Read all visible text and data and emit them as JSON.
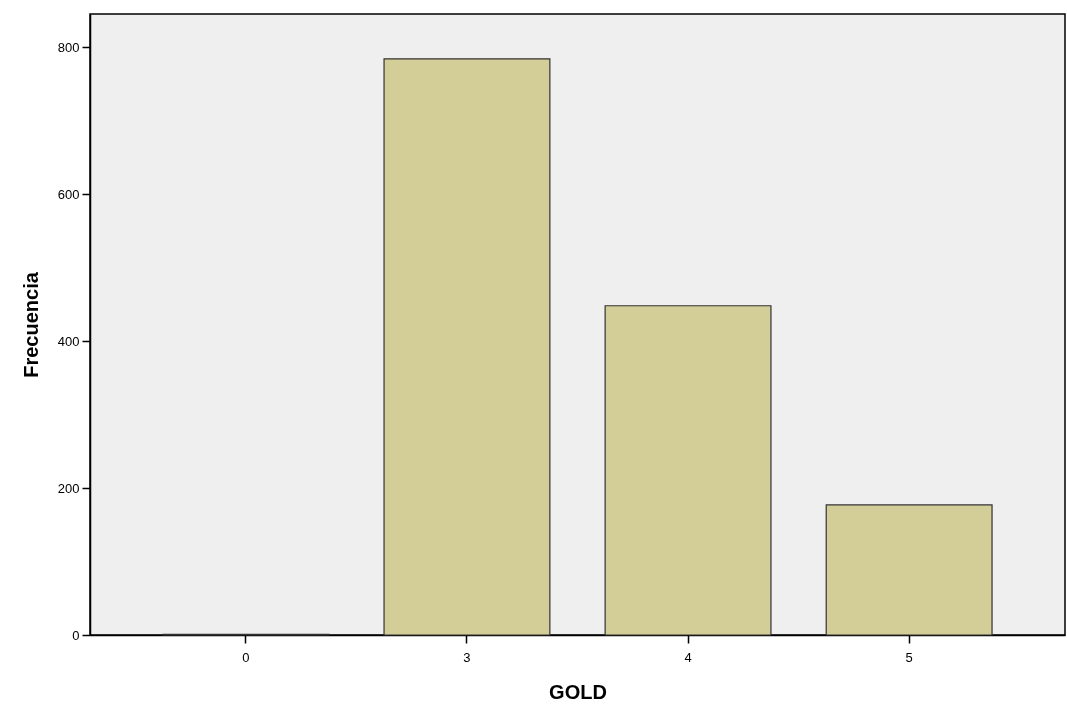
{
  "chart_data": {
    "type": "bar",
    "xlabel": "GOLD",
    "ylabel": "Frecuencia",
    "categories": [
      "0",
      "3",
      "4",
      "5"
    ],
    "values": [
      1,
      784,
      448,
      177
    ],
    "color": "#d3cd97",
    "ylim": [
      0,
      845
    ],
    "yticks": [
      0,
      200,
      400,
      600,
      800
    ],
    "grid": false
  }
}
